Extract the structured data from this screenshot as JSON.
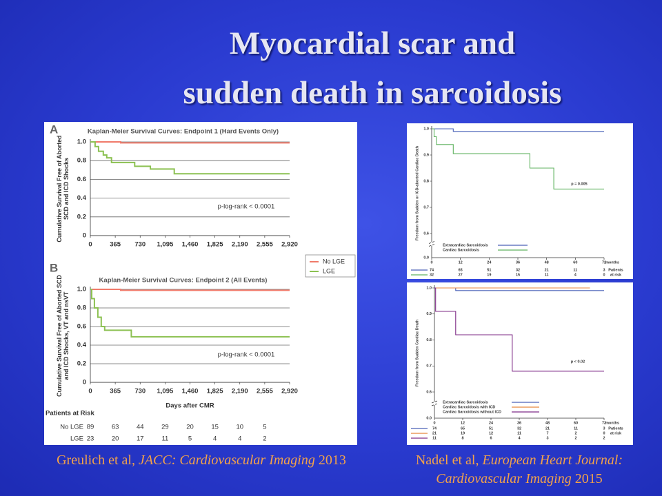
{
  "slide": {
    "title_lines": [
      "Myocardial scar and",
      "sudden death in sarcoidosis"
    ],
    "captions": [
      {
        "author": "Greulich et al,",
        "journal": "JACC: Cardiovascular Imaging",
        "year": "2013"
      },
      {
        "author": "Nadel et al,",
        "journal": "European Heart Journal: Cardiovascular Imaging",
        "year": "2015"
      }
    ]
  },
  "chart_data": [
    {
      "type": "line",
      "panel": "A",
      "title": "Kaplan-Meier Survival Curves: Endpoint 1 (Hard Events Only)",
      "y_label": "Cumulative Survival Free of Aborted SCD and ICD Shocks",
      "annotation": "p-log-rank < 0.0001",
      "xlim": [
        0,
        2920
      ],
      "ylim": [
        0,
        1
      ],
      "xticks": [
        0,
        365,
        730,
        {
          "value": 1095,
          "label": "1,095"
        },
        {
          "value": 1460,
          "label": "1,460"
        },
        {
          "value": 1825,
          "label": "1,825"
        },
        {
          "value": 2190,
          "label": "2,190"
        },
        {
          "value": 2555,
          "label": "2,555"
        },
        {
          "value": 2920,
          "label": "2,920"
        }
      ],
      "yticks": [
        0,
        0.2,
        0.4,
        0.6,
        0.8,
        {
          "value": 1,
          "label": "1.0"
        }
      ],
      "grid": true,
      "legend": "right",
      "series": [
        {
          "name": "No LGE",
          "color": "#f07a6a",
          "x": [
            0,
            445,
            445,
            2920
          ],
          "values": [
            1,
            1,
            0.99,
            0.99
          ]
        },
        {
          "name": "LGE",
          "color": "#8cc152",
          "x": [
            0,
            70,
            70,
            120,
            120,
            190,
            190,
            240,
            240,
            310,
            310,
            650,
            650,
            880,
            880,
            1230,
            1230,
            2920
          ],
          "values": [
            1,
            1,
            0.95,
            0.95,
            0.9,
            0.9,
            0.86,
            0.86,
            0.83,
            0.83,
            0.78,
            0.78,
            0.74,
            0.74,
            0.71,
            0.71,
            0.66,
            0.66
          ]
        }
      ]
    },
    {
      "type": "line",
      "panel": "B",
      "title": "Kaplan-Meier Survival Curves: Endpoint 2 (All Events)",
      "y_label": "Cumulative Survival Free of Aborted SCD and ICD Shocks, VT and nsVT",
      "x_label": "Days after CMR",
      "annotation": "p-log-rank < 0.0001",
      "xlim": [
        0,
        2920
      ],
      "ylim": [
        0,
        1
      ],
      "xticks": [
        0,
        365,
        730,
        {
          "value": 1095,
          "label": "1,095"
        },
        {
          "value": 1460,
          "label": "1,460"
        },
        {
          "value": 1825,
          "label": "1,825"
        },
        {
          "value": 2190,
          "label": "2,190"
        },
        {
          "value": 2555,
          "label": "2,555"
        },
        {
          "value": 2920,
          "label": "2,920"
        }
      ],
      "yticks": [
        0,
        0.2,
        0.4,
        0.6,
        0.8,
        {
          "value": 1,
          "label": "1.0"
        }
      ],
      "grid": true,
      "series": [
        {
          "color": "#f07a6a",
          "x": [
            0,
            445,
            445,
            2920
          ],
          "values": [
            1,
            1,
            0.99,
            0.99
          ]
        },
        {
          "color": "#8cc152",
          "x": [
            0,
            20,
            20,
            60,
            60,
            110,
            110,
            160,
            160,
            210,
            210,
            600,
            600,
            2920
          ],
          "values": [
            1,
            1,
            0.9,
            0.9,
            0.8,
            0.8,
            0.7,
            0.7,
            0.6,
            0.6,
            0.56,
            0.56,
            0.49,
            0.49
          ]
        }
      ],
      "at_risk": {
        "title": [
          "Patients at Risk"
        ],
        "rows": [
          {
            "label": "No LGE",
            "counts": [
              89,
              63,
              44,
              29,
              20,
              15,
              10,
              5
            ]
          },
          {
            "label": "LGE",
            "counts": [
              23,
              20,
              17,
              11,
              5,
              4,
              4,
              2
            ]
          }
        ]
      }
    },
    {
      "type": "line",
      "y_label": "Freedom from Sudden or ICD-aborted Cardiac Death",
      "annotation": "p = 0.005",
      "x_unit": "months",
      "axis_break_label": "0.0",
      "xlim": [
        0,
        72
      ],
      "ylim": [
        0.6,
        1
      ],
      "xticks": [
        0,
        12,
        24,
        36,
        48,
        60,
        72
      ],
      "yticks": [
        0.6,
        0.7,
        0.8,
        0.9,
        {
          "value": 1,
          "label": "1.0"
        }
      ],
      "grid": false,
      "legend": "bottom-left",
      "series": [
        {
          "name": "Extracardiac Sarcoidosis",
          "color": "#4a62b8",
          "x": [
            0,
            9,
            9,
            72
          ],
          "values": [
            1,
            1,
            0.99,
            0.99
          ]
        },
        {
          "name": "Cardiac Sarcoidosis",
          "color": "#5fb25f",
          "x": [
            0,
            1,
            1,
            2,
            2,
            9,
            9,
            41,
            41,
            51,
            51,
            72
          ],
          "values": [
            1,
            1,
            0.97,
            0.97,
            0.94,
            0.94,
            0.905,
            0.905,
            0.85,
            0.85,
            0.77,
            0.77
          ]
        }
      ],
      "at_risk": {
        "title": [
          "Patients",
          "at risk"
        ],
        "rows": [
          {
            "counts": [
              74,
              65,
              51,
              32,
              21,
              11,
              3
            ]
          },
          {
            "counts": [
              32,
              27,
              19,
              15,
              11,
              4,
              0
            ]
          }
        ]
      }
    },
    {
      "type": "line",
      "y_label": "Freedom from Sudden Cardiac Death",
      "annotation": "p < 0.02",
      "x_unit": "months",
      "axis_break_label": "0.0",
      "xlim": [
        0,
        72
      ],
      "ylim": [
        0.6,
        1
      ],
      "xticks": [
        0,
        12,
        24,
        36,
        48,
        60,
        72
      ],
      "yticks": [
        0.6,
        0.7,
        0.8,
        0.9,
        {
          "value": 1,
          "label": "1.0"
        }
      ],
      "grid": false,
      "legend": "bottom-left",
      "series": [
        {
          "name": "Extracardiac Sarcoidosis",
          "color": "#4a62b8",
          "x": [
            0,
            9,
            9,
            72
          ],
          "values": [
            1,
            1,
            0.99,
            0.99
          ]
        },
        {
          "name": "Cardiac Sarcoidosis with ICD",
          "color": "#e8863c",
          "x": [
            0,
            66
          ],
          "values": [
            1,
            1
          ]
        },
        {
          "name": "Cardiac Sarcoidosis without ICD",
          "color": "#7e2a86",
          "x": [
            0,
            0.5,
            0.5,
            9,
            9,
            33,
            33,
            72
          ],
          "values": [
            1,
            1,
            0.91,
            0.91,
            0.82,
            0.82,
            0.68,
            0.68
          ]
        }
      ],
      "at_risk": {
        "title": [
          "Patients",
          "at risk"
        ],
        "rows": [
          {
            "counts": [
              74,
              65,
              51,
              32,
              21,
              11,
              3
            ]
          },
          {
            "counts": [
              21,
              19,
              12,
              11,
              7,
              2,
              0
            ]
          },
          {
            "counts": [
              11,
              8,
              6,
              4,
              3,
              2,
              2
            ]
          }
        ]
      }
    }
  ]
}
